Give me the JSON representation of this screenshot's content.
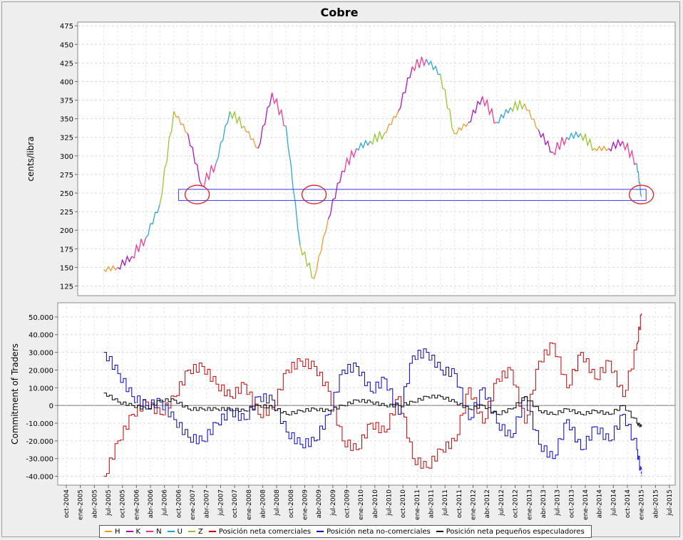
{
  "chart_data": [
    {
      "type": "line",
      "title": "Cobre",
      "ylabel": "cents/libra",
      "xlabel": "",
      "ylim": [
        112,
        480
      ],
      "yticks": [
        125,
        150,
        175,
        200,
        225,
        250,
        275,
        300,
        325,
        350,
        375,
        400,
        425,
        450,
        475
      ],
      "grid": true,
      "contract_colors": {
        "H": "#ff8f1f",
        "K": "#b000c8",
        "N": "#ff2b8a",
        "U": "#1aa0e8",
        "Z": "#8fc41a"
      },
      "contract_sequence": [
        "H",
        "K",
        "N",
        "U",
        "Z"
      ],
      "x": [
        "2005-06",
        "2005-09",
        "2005-12",
        "2006-03",
        "2006-06",
        "2006-09",
        "2006-12",
        "2007-03",
        "2007-06",
        "2007-09",
        "2007-12",
        "2008-03",
        "2008-06",
        "2008-09",
        "2008-12",
        "2009-03",
        "2009-06",
        "2009-09",
        "2009-12",
        "2010-03",
        "2010-06",
        "2010-09",
        "2010-12",
        "2011-03",
        "2011-06",
        "2011-09",
        "2011-12",
        "2012-03",
        "2012-06",
        "2012-09",
        "2012-12",
        "2013-03",
        "2013-06",
        "2013-09",
        "2013-12",
        "2014-03",
        "2014-06",
        "2014-09",
        "2014-12",
        "2015-01"
      ],
      "values": [
        147,
        150,
        165,
        190,
        235,
        360,
        330,
        260,
        290,
        360,
        340,
        310,
        385,
        340,
        180,
        135,
        215,
        280,
        310,
        320,
        330,
        360,
        420,
        430,
        410,
        330,
        345,
        380,
        345,
        365,
        370,
        335,
        305,
        325,
        330,
        310,
        310,
        320,
        290,
        245
      ],
      "support_band": {
        "y_from": 240,
        "y_to": 255,
        "x_from": "2006-10",
        "x_to": "2015-02"
      },
      "highlights": [
        {
          "x": "2007-02",
          "y": 248
        },
        {
          "x": "2009-03",
          "y": 248
        },
        {
          "x": "2015-01",
          "y": 248
        }
      ]
    },
    {
      "type": "line",
      "ylabel": "Commitment of Traders",
      "ylim": [
        -45000,
        58000
      ],
      "yticks": [
        -40000,
        -30000,
        -20000,
        -10000,
        0,
        10000,
        20000,
        30000,
        40000,
        50000
      ],
      "ytick_labels": [
        "-40.000",
        "-30.000",
        "-20.000",
        "-10.000",
        "0",
        "10.000",
        "20.000",
        "30.000",
        "40.000",
        "50.000"
      ],
      "grid": true,
      "x": [
        "2005-06",
        "2005-09",
        "2005-12",
        "2006-03",
        "2006-06",
        "2006-09",
        "2006-12",
        "2007-03",
        "2007-06",
        "2007-09",
        "2007-12",
        "2008-03",
        "2008-06",
        "2008-09",
        "2008-12",
        "2009-03",
        "2009-06",
        "2009-09",
        "2009-12",
        "2010-03",
        "2010-06",
        "2010-09",
        "2010-12",
        "2011-03",
        "2011-06",
        "2011-09",
        "2011-12",
        "2012-03",
        "2012-06",
        "2012-09",
        "2012-12",
        "2013-03",
        "2013-06",
        "2013-09",
        "2013-12",
        "2014-03",
        "2014-06",
        "2014-09",
        "2014-12",
        "2015-01"
      ],
      "xticks": [
        "oct-2004",
        "ene-2005",
        "abr-2005",
        "jul-2005",
        "oct-2005",
        "ene-2006",
        "abr-2006",
        "jul-2006",
        "oct-2006",
        "ene-2007",
        "abr-2007",
        "jul-2007",
        "oct-2007",
        "ene-2008",
        "abr-2008",
        "jul-2008",
        "oct-2008",
        "ene-2009",
        "abr-2009",
        "jul-2009",
        "oct-2009",
        "ene-2010",
        "abr-2010",
        "jul-2010",
        "oct-2010",
        "ene-2011",
        "abr-2011",
        "jul-2011",
        "oct-2011",
        "ene-2012",
        "abr-2012",
        "jul-2012",
        "oct-2012",
        "ene-2013",
        "abr-2013",
        "jul-2013",
        "oct-2013",
        "ene-2014",
        "abr-2014",
        "jul-2014",
        "oct-2014",
        "ene-2015",
        "abr-2015",
        "jul-2015"
      ],
      "series": [
        {
          "name": "Posición neta comerciales",
          "color": "#cc0000",
          "values": [
            -40000,
            -20000,
            -5000,
            2000,
            -5000,
            5000,
            20000,
            22000,
            12000,
            5000,
            12000,
            -5000,
            -2000,
            20000,
            25000,
            22000,
            8000,
            -20000,
            -25000,
            -10000,
            -15000,
            5000,
            -30000,
            -35000,
            -25000,
            -20000,
            10000,
            -10000,
            15000,
            20000,
            -10000,
            25000,
            35000,
            10000,
            30000,
            15000,
            25000,
            5000,
            35000,
            52000
          ]
        },
        {
          "name": "Posición neta no-comerciales",
          "color": "#0000cc",
          "values": [
            30000,
            18000,
            5000,
            0,
            2000,
            -8000,
            -18000,
            -20000,
            -10000,
            -3000,
            -8000,
            5000,
            3000,
            -15000,
            -22000,
            -20000,
            -5000,
            20000,
            22000,
            8000,
            15000,
            -5000,
            28000,
            30000,
            20000,
            18000,
            -8000,
            10000,
            -10000,
            -18000,
            5000,
            -22000,
            -30000,
            -8000,
            -25000,
            -12000,
            -20000,
            -5000,
            -25000,
            -40000
          ]
        },
        {
          "name": "Posición neta pequeños especuladores",
          "color": "#000000",
          "values": [
            7000,
            2000,
            0,
            -2000,
            3000,
            3000,
            -2000,
            -2000,
            -2000,
            -2000,
            -3000,
            0,
            -1000,
            -5000,
            -3000,
            -2000,
            -3000,
            0,
            3000,
            2000,
            0,
            0,
            2000,
            5000,
            5000,
            2000,
            -2000,
            0,
            -5000,
            -2000,
            5000,
            -3000,
            -5000,
            -2000,
            -5000,
            -3000,
            -5000,
            0,
            -10000,
            -12000
          ]
        }
      ]
    }
  ],
  "legend": {
    "items": [
      {
        "label": "H",
        "color": "#ff8f1f"
      },
      {
        "label": "K",
        "color": "#b000c8"
      },
      {
        "label": "N",
        "color": "#ff2b8a"
      },
      {
        "label": "U",
        "color": "#1aa0e8"
      },
      {
        "label": "Z",
        "color": "#8fc41a"
      },
      {
        "label": "Posición neta comerciales",
        "color": "#cc0000"
      },
      {
        "label": "Posición neta no-comerciales",
        "color": "#0000cc"
      },
      {
        "label": "Posición neta pequeños especuladores",
        "color": "#000000"
      }
    ]
  }
}
